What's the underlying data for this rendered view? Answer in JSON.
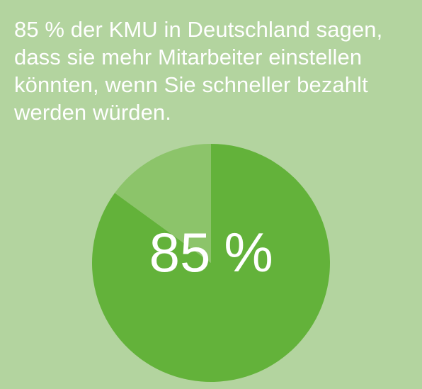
{
  "headline": {
    "lines": [
      "85 % der KMU in Deutschland sagen,",
      "dass sie mehr Mitarbeiter einstellen",
      "könnten, wenn Sie schneller bezahlt",
      "werden würden."
    ]
  },
  "chart_data": {
    "type": "pie",
    "slices": [
      {
        "value": 85,
        "color": "#63b23a"
      },
      {
        "value": 15,
        "color": "#8cc46a"
      }
    ],
    "center_label": {
      "number": "85",
      "unit": "%"
    }
  },
  "colors": {
    "background": "#b3d49f",
    "text": "#ffffff"
  }
}
